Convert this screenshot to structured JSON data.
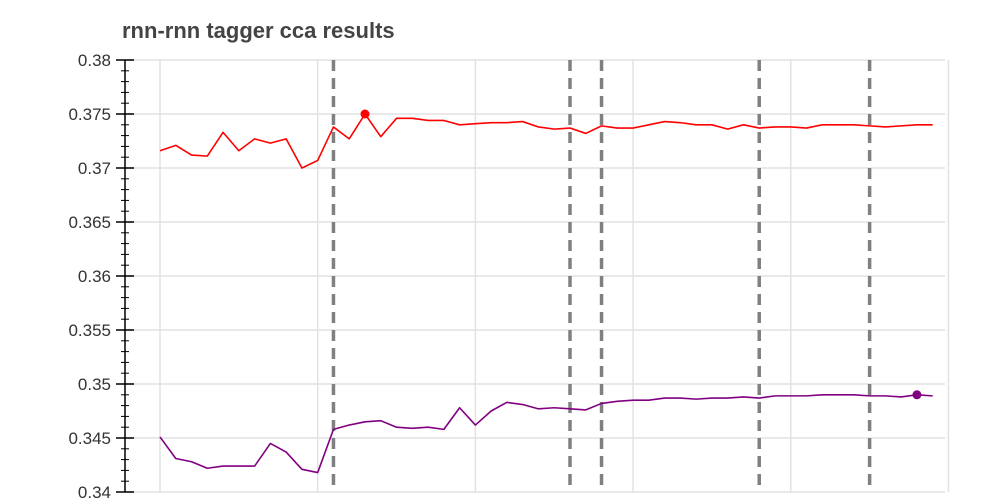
{
  "chart_data": {
    "type": "line",
    "title": "rnn-rnn tagger cca results",
    "xlabel": "",
    "ylabel": "",
    "ylim": [
      0.34,
      0.38
    ],
    "yticks": [
      {
        "value": 0.34,
        "label": "0.34"
      },
      {
        "value": 0.345,
        "label": "0.345"
      },
      {
        "value": 0.35,
        "label": "0.35"
      },
      {
        "value": 0.355,
        "label": "0.355"
      },
      {
        "value": 0.36,
        "label": "0.36"
      },
      {
        "value": 0.365,
        "label": "0.365"
      },
      {
        "value": 0.37,
        "label": "0.37"
      },
      {
        "value": 0.375,
        "label": "0.375"
      },
      {
        "value": 0.38,
        "label": "0.38"
      }
    ],
    "x": [
      1,
      2,
      3,
      4,
      5,
      6,
      7,
      8,
      9,
      10,
      11,
      12,
      13,
      14,
      15,
      16,
      17,
      18,
      19,
      20,
      21,
      22,
      23,
      24,
      25,
      26,
      27,
      28,
      29,
      30,
      31,
      32,
      33,
      34,
      35,
      36,
      37,
      38,
      39,
      40,
      41,
      42,
      43,
      44,
      45,
      46,
      47,
      48,
      49,
      50
    ],
    "xlim": [
      1,
      53
    ],
    "x_gridlines": [
      1,
      11,
      21,
      31,
      41,
      51
    ],
    "dashed_markers": [
      12,
      27,
      29,
      39,
      46
    ],
    "grid": true,
    "series": [
      {
        "color": "#ff0000",
        "values": [
          0.3716,
          0.3721,
          0.3712,
          0.3711,
          0.3733,
          0.3716,
          0.3727,
          0.3723,
          0.3727,
          0.37,
          0.3707,
          0.3738,
          0.3727,
          0.375,
          0.3729,
          0.3746,
          0.3746,
          0.3744,
          0.3744,
          0.374,
          0.3741,
          0.3742,
          0.3742,
          0.3743,
          0.3738,
          0.3736,
          0.3737,
          0.3732,
          0.3739,
          0.3737,
          0.3737,
          0.374,
          0.3743,
          0.3742,
          0.374,
          0.374,
          0.3736,
          0.374,
          0.3737,
          0.3738,
          0.3738,
          0.3737,
          0.374,
          0.374,
          0.374,
          0.3739,
          0.3738,
          0.3739,
          0.374,
          0.374
        ],
        "best_index": 13
      },
      {
        "color": "#800080",
        "values": [
          0.3451,
          0.3431,
          0.3428,
          0.3422,
          0.3424,
          0.3424,
          0.3424,
          0.3445,
          0.3437,
          0.3421,
          0.3418,
          0.3458,
          0.3462,
          0.3465,
          0.3466,
          0.346,
          0.3459,
          0.346,
          0.3458,
          0.3478,
          0.3462,
          0.3475,
          0.3483,
          0.3481,
          0.3477,
          0.3478,
          0.3477,
          0.3476,
          0.3482,
          0.3484,
          0.3485,
          0.3485,
          0.3487,
          0.3487,
          0.3486,
          0.3487,
          0.3487,
          0.3488,
          0.3487,
          0.3489,
          0.3489,
          0.3489,
          0.349,
          0.349,
          0.349,
          0.3489,
          0.3489,
          0.3488,
          0.349,
          0.3489
        ],
        "best_index": 48
      }
    ]
  }
}
